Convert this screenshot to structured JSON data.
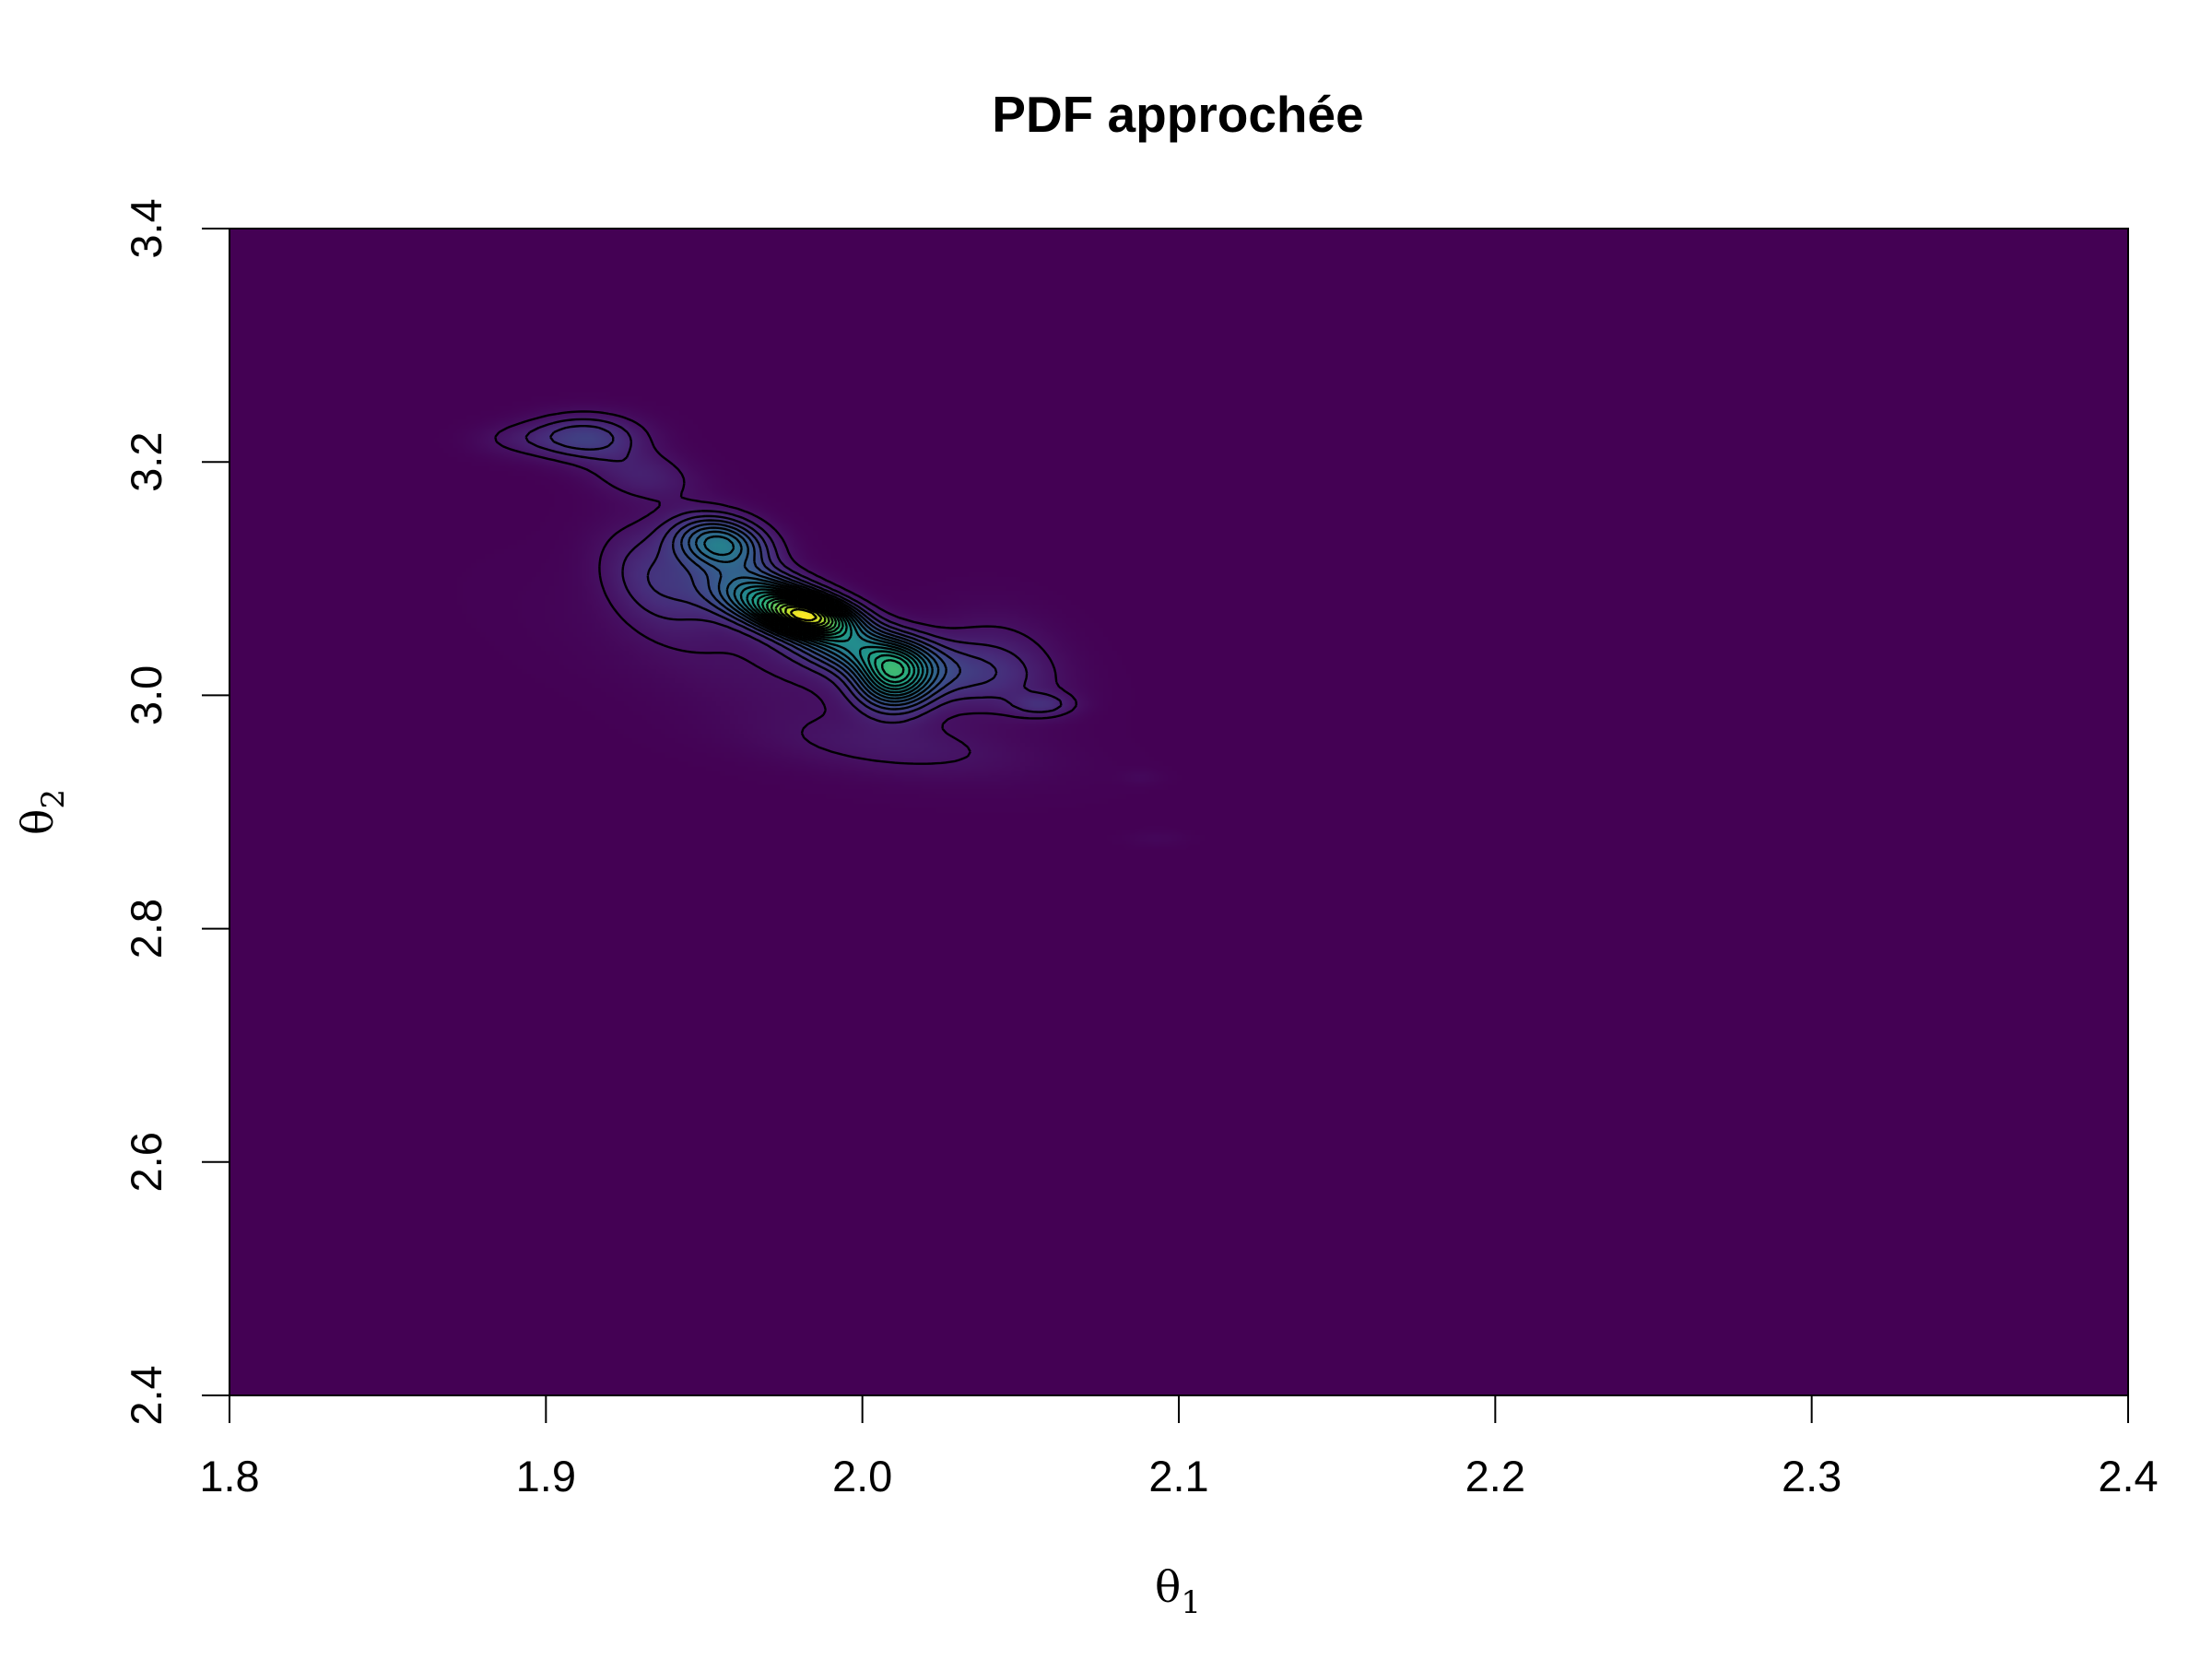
{
  "chart_data": {
    "type": "heatmap",
    "title": "PDF approchée",
    "xlabel": {
      "symbol": "θ",
      "subscript": "1"
    },
    "ylabel": {
      "symbol": "θ",
      "subscript": "2"
    },
    "xlim": [
      1.8,
      2.4
    ],
    "ylim": [
      2.4,
      3.4
    ],
    "x_ticks": [
      "1.8",
      "1.9",
      "2.0",
      "2.1",
      "2.2",
      "2.3",
      "2.4"
    ],
    "y_ticks": [
      "2.4",
      "2.6",
      "2.8",
      "3.0",
      "3.2",
      "3.4"
    ],
    "colormap": "viridis",
    "colors": {
      "background": "#440154",
      "mid": "#21908c",
      "peak": "#fde725",
      "contour": "#000000"
    },
    "contours": true,
    "grid": false,
    "legend": "none",
    "density_components": [
      {
        "x": 1.983,
        "y": 3.068,
        "sx": 0.01,
        "sy": 0.012,
        "rho": -0.3,
        "w": 1.0
      },
      {
        "x": 1.968,
        "y": 3.085,
        "sx": 0.012,
        "sy": 0.016,
        "rho": -0.3,
        "w": 0.55
      },
      {
        "x": 1.955,
        "y": 3.13,
        "sx": 0.01,
        "sy": 0.016,
        "rho": -0.2,
        "w": 0.55
      },
      {
        "x": 2.01,
        "y": 3.015,
        "sx": 0.008,
        "sy": 0.018,
        "rho": 0.0,
        "w": 0.6
      },
      {
        "x": 1.998,
        "y": 3.04,
        "sx": 0.014,
        "sy": 0.016,
        "rho": -0.4,
        "w": 0.45
      },
      {
        "x": 1.935,
        "y": 3.1,
        "sx": 0.012,
        "sy": 0.03,
        "rho": -0.3,
        "w": 0.18
      },
      {
        "x": 2.03,
        "y": 3.02,
        "sx": 0.018,
        "sy": 0.02,
        "rho": -0.3,
        "w": 0.18
      },
      {
        "x": 1.912,
        "y": 3.222,
        "sx": 0.012,
        "sy": 0.013,
        "rho": 0.0,
        "w": 0.24
      },
      {
        "x": 1.93,
        "y": 3.19,
        "sx": 0.012,
        "sy": 0.016,
        "rho": -0.3,
        "w": 0.12
      },
      {
        "x": 1.89,
        "y": 3.22,
        "sx": 0.01,
        "sy": 0.01,
        "rho": 0.0,
        "w": 0.06
      },
      {
        "x": 2.057,
        "y": 2.992,
        "sx": 0.007,
        "sy": 0.007,
        "rho": 0.0,
        "w": 0.14
      },
      {
        "x": 2.045,
        "y": 3.04,
        "sx": 0.013,
        "sy": 0.025,
        "rho": -0.2,
        "w": 0.07
      },
      {
        "x": 2.01,
        "y": 2.955,
        "sx": 0.03,
        "sy": 0.018,
        "rho": -0.4,
        "w": 0.07
      },
      {
        "x": 1.975,
        "y": 3.02,
        "sx": 0.04,
        "sy": 0.045,
        "rho": -0.6,
        "w": 0.06
      },
      {
        "x": 2.088,
        "y": 2.93,
        "sx": 0.005,
        "sy": 0.005,
        "rho": 0.0,
        "w": 0.025
      },
      {
        "x": 2.093,
        "y": 2.877,
        "sx": 0.007,
        "sy": 0.005,
        "rho": 0.0,
        "w": 0.025
      }
    ]
  }
}
